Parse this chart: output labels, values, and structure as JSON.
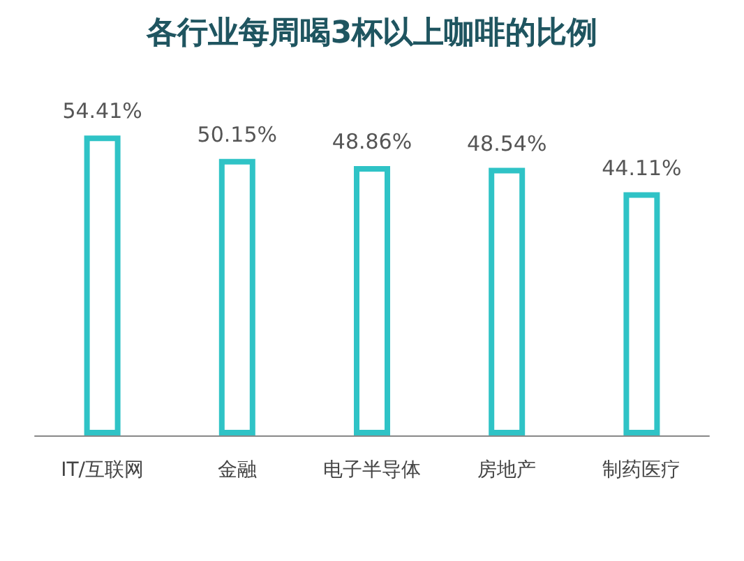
{
  "chart_data": {
    "type": "bar",
    "title": "各行业每周喝3杯以上咖啡的比例",
    "categories": [
      "IT/互联网",
      "金融",
      "电子半导体",
      "房地产",
      "制药医疗"
    ],
    "values": [
      54.41,
      50.15,
      48.86,
      48.54,
      44.11
    ],
    "value_labels": [
      "54.41%",
      "50.15%",
      "48.86%",
      "48.54%",
      "44.11%"
    ],
    "color": "#2fc3c6"
  }
}
